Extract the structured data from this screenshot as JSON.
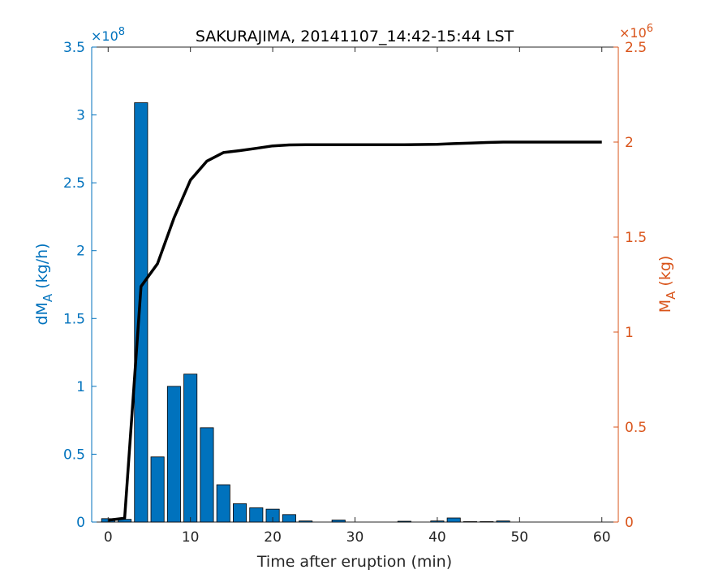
{
  "chart_data": {
    "type": "bar",
    "title": "SAKURAJIMA, 20141107_14:42-15:44 LST",
    "xlabel": "Time after eruption (min)",
    "x_ticks": [
      "0",
      "10",
      "20",
      "30",
      "40",
      "50",
      "60"
    ],
    "xlim": [
      -2,
      62
    ],
    "left_axis": {
      "label_main": "dM",
      "label_sub": "A",
      "label_unit": " (kg/h)",
      "exponent_base": "×10",
      "exponent_power": "8",
      "ylim": [
        0,
        3.5
      ],
      "ticks": [
        "0",
        "0.5",
        "1",
        "1.5",
        "2",
        "2.5",
        "3",
        "3.5"
      ],
      "color": "#0072BD"
    },
    "right_axis": {
      "label_main": "M",
      "label_sub": "A",
      "label_unit": " (kg)",
      "exponent_base": "×10",
      "exponent_power": "6",
      "ylim": [
        0,
        2.5
      ],
      "ticks": [
        "0",
        "0.5",
        "1",
        "1.5",
        "2",
        "2.5"
      ],
      "color": "#D95319"
    },
    "bar_series": {
      "axis": "left",
      "color": "#0072BD",
      "x": [
        0,
        2,
        4,
        6,
        8,
        10,
        12,
        14,
        16,
        18,
        20,
        22,
        24,
        26,
        28,
        30,
        32,
        34,
        36,
        38,
        40,
        42,
        44,
        46,
        48,
        50,
        52,
        54,
        56,
        58
      ],
      "values": [
        0.025,
        0.02,
        3.09,
        0.48,
        1.0,
        1.09,
        0.695,
        0.275,
        0.135,
        0.105,
        0.095,
        0.055,
        0.008,
        0.0,
        0.015,
        0.0,
        0.0,
        0.0,
        0.006,
        0.0,
        0.008,
        0.03,
        0.003,
        0.003,
        0.008,
        0.0,
        0.0,
        0.0,
        0.0,
        0.0
      ]
    },
    "line_series": {
      "axis": "right",
      "color": "#000000",
      "x": [
        0,
        2,
        4,
        6,
        8,
        10,
        12,
        14,
        16,
        18,
        20,
        22,
        24,
        26,
        28,
        30,
        32,
        34,
        36,
        38,
        40,
        42,
        44,
        46,
        48,
        50,
        52,
        54,
        56,
        58,
        60
      ],
      "values": [
        0.01,
        0.02,
        1.24,
        1.36,
        1.6,
        1.8,
        1.9,
        1.945,
        1.955,
        1.967,
        1.98,
        1.985,
        1.986,
        1.986,
        1.986,
        1.986,
        1.986,
        1.986,
        1.986,
        1.987,
        1.988,
        1.992,
        1.995,
        1.998,
        2.0,
        2.0,
        2.0,
        2.0,
        2.0,
        2.0,
        2.0
      ]
    },
    "grid": false,
    "legend": "none"
  }
}
